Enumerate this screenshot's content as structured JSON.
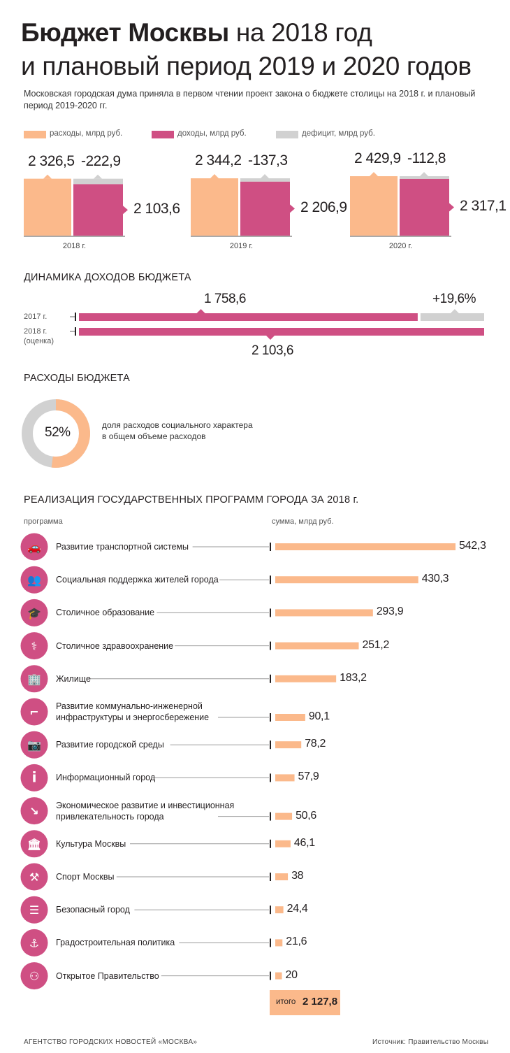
{
  "title": {
    "line1_bold": "Бюджет Москвы",
    "line1_rest": " на 2018 год",
    "line2": "и плановый период 2019 и 2020 годов"
  },
  "subtitle": "Московская городская дума приняла в первом чтении проект закона о бюджете столицы на 2018 г. и плановый период 2019-2020 гг.",
  "colors": {
    "expense": "#fbb98b",
    "income": "#cf4f83",
    "deficit": "#d1d1d1",
    "text": "#231f20"
  },
  "legend": {
    "expense": "расходы, млрд руб.",
    "income": "доходы, млрд руб.",
    "deficit": "дефицит, млрд руб."
  },
  "chart_data": [
    {
      "type": "bar",
      "categories": [
        "2018 г.",
        "2019 г.",
        "2020 г."
      ],
      "series": [
        {
          "name": "расходы, млрд руб.",
          "values": [
            2326.5,
            2344.2,
            2429.9
          ]
        },
        {
          "name": "доходы, млрд руб.",
          "values": [
            2103.6,
            2206.9,
            2317.1
          ]
        },
        {
          "name": "дефицит, млрд руб.",
          "values": [
            -222.9,
            -137.3,
            -112.8
          ]
        }
      ],
      "labels": {
        "expense": [
          "2 326,5",
          "2 344,2",
          "2 429,9"
        ],
        "income": [
          "2 103,6",
          "2 206,9",
          "2 317,1"
        ],
        "deficit": [
          "-222,9",
          "-137,3",
          "-112,8"
        ]
      }
    },
    {
      "type": "bar",
      "title": "ДИНАМИКА ДОХОДОВ БЮДЖЕТА",
      "categories": [
        "2017 г.",
        "2018 г. (оценка)"
      ],
      "values": [
        1758.6,
        2103.6
      ],
      "labels": [
        "1 758,6",
        "2 103,6"
      ],
      "growth_label": "+19,6%"
    },
    {
      "type": "pie",
      "title": "РАСХОДЫ БЮДЖЕТА",
      "values": [
        52,
        48
      ],
      "label": "52%",
      "caption": "доля расходов социального характера в общем объеме расходов"
    },
    {
      "type": "bar",
      "title": "РЕАЛИЗАЦИЯ ГОСУДАРСТВЕННЫХ ПРОГРАММ ГОРОДА ЗА 2018 г.",
      "col_program": "программа",
      "col_sum": "сумма, млрд руб.",
      "items": [
        {
          "name": "Развитие транспортной системы",
          "value": 542.3,
          "label": "542,3",
          "icon": "car-icon"
        },
        {
          "name": "Социальная поддержка жителей города",
          "value": 430.3,
          "label": "430,3",
          "icon": "people-icon"
        },
        {
          "name": "Столичное образование",
          "value": 293.9,
          "label": "293,9",
          "icon": "graduation-cap-icon"
        },
        {
          "name": "Столичное здравоохранение",
          "value": 251.2,
          "label": "251,2",
          "icon": "caduceus-icon"
        },
        {
          "name": "Жилище",
          "value": 183.2,
          "label": "183,2",
          "icon": "buildings-icon"
        },
        {
          "name": "Развитие коммунально-инженерной инфраструктуры и энергосбережение",
          "value": 90.1,
          "label": "90,1",
          "icon": "pipe-icon"
        },
        {
          "name": "Развитие городской среды",
          "value": 78.2,
          "label": "78,2",
          "icon": "camera-icon"
        },
        {
          "name": "Информационный город",
          "value": 57.9,
          "label": "57,9",
          "icon": "info-icon"
        },
        {
          "name": "Экономическое развитие и инвестиционная привлекательность города",
          "value": 50.6,
          "label": "50,6",
          "icon": "chart-down-icon"
        },
        {
          "name": "Культура Москвы",
          "value": 46.1,
          "label": "46,1",
          "icon": "museum-icon"
        },
        {
          "name": "Спорт Москвы",
          "value": 38,
          "label": "38",
          "icon": "dumbbell-icon"
        },
        {
          "name": "Безопасный город",
          "value": 24.4,
          "label": "24,4",
          "icon": "document-icon"
        },
        {
          "name": "Градостроительная политика",
          "value": 21.6,
          "label": "21,6",
          "icon": "crane-hook-icon"
        },
        {
          "name": "Открытое Правительство",
          "value": 20,
          "label": "20",
          "icon": "group-icon"
        }
      ],
      "total_prefix": "итого",
      "total_value": "2 127,8"
    }
  ],
  "footer": {
    "left": "АГЕНТСТВО ГОРОДСКИХ НОВОСТЕЙ «МОСКВА»",
    "right": "Источник: Правительство Москвы"
  }
}
